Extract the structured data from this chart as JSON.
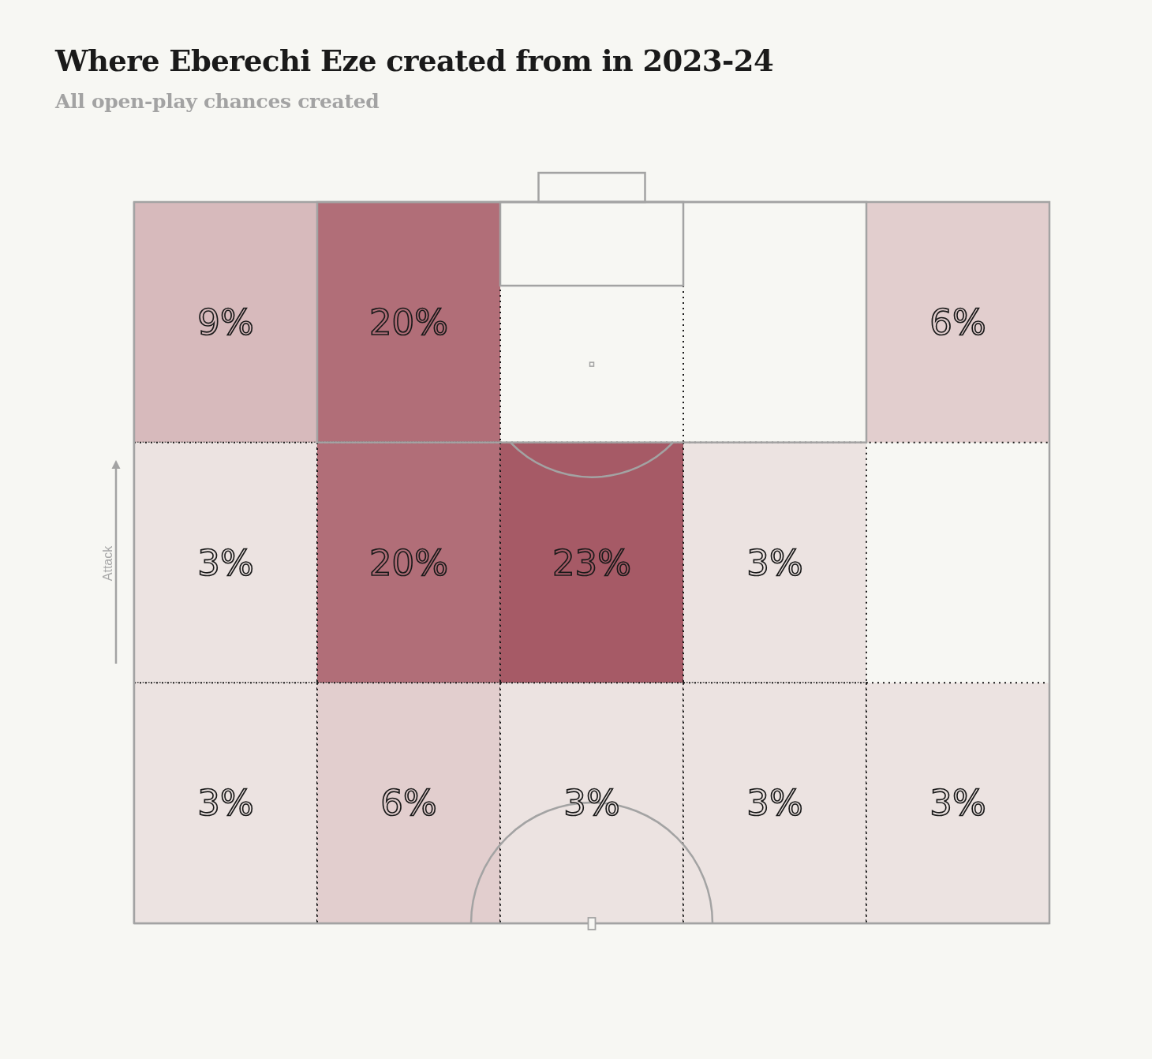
{
  "chart_data": {
    "type": "heatmap",
    "title": "Where Eberechi Eze created from in 2023-24",
    "subtitle": "All open-play chances created",
    "ylabel": "Attack",
    "categories": [
      null,
      null,
      null,
      null,
      null
    ],
    "y_categories": [
      null,
      null,
      null
    ],
    "cells": [
      [
        9,
        20,
        null,
        null,
        6
      ],
      [
        3,
        20,
        23,
        3,
        null
      ],
      [
        3,
        6,
        3,
        3,
        3
      ]
    ],
    "cell_labels": [
      [
        "9%",
        "20%",
        null,
        null,
        "6%"
      ],
      [
        "3%",
        "20%",
        "23%",
        "3%",
        null
      ],
      [
        "3%",
        "6%",
        "3%",
        "3%",
        "3%"
      ]
    ]
  }
}
